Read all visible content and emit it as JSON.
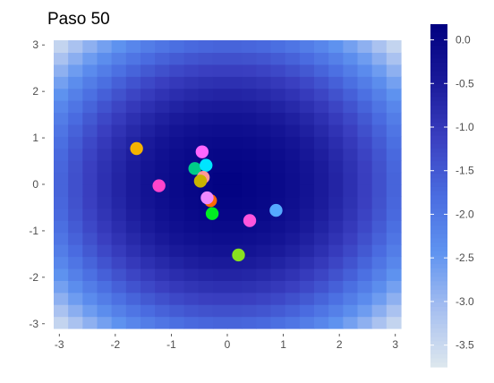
{
  "chart_data": {
    "type": "scatter",
    "title": "Paso 50",
    "xlabel": "",
    "ylabel": "",
    "xlim": [
      -3.1,
      3.1
    ],
    "ylim": [
      -3.1,
      3.1
    ],
    "x_ticks": [
      -3,
      -2,
      -1,
      0,
      1,
      2,
      3
    ],
    "y_ticks": [
      -3,
      -2,
      -1,
      0,
      1,
      2,
      3
    ],
    "x_tick_labels": [
      "-3",
      "-2",
      "-1",
      "0",
      "1",
      "2",
      "3"
    ],
    "y_tick_labels": [
      "-3",
      "-2",
      "-1",
      "0",
      "1",
      "2",
      "3"
    ],
    "grid": true,
    "legend_placement": "right",
    "background_surface": {
      "type": "heatmap",
      "description_value": "z = -(x^2 + y^2)/5 + 0.1 approx",
      "x_range": [
        -3.1,
        3.1
      ],
      "y_range": [
        -3.1,
        3.1
      ],
      "cells": 24
    },
    "colorbar": {
      "min": -3.75,
      "max": 0.18,
      "ticks": [
        0.0,
        -0.5,
        -1.0,
        -1.5,
        -2.0,
        -2.5,
        -3.0,
        -3.5
      ],
      "tick_labels": [
        "0.0",
        "-0.5",
        "-1.0",
        "-1.5",
        "-2.0",
        "-2.5",
        "-3.0",
        "-3.5"
      ],
      "colors": [
        "#dde8ee",
        "#a7bff0",
        "#5f93f0",
        "#4a6ce0",
        "#3a3fc0",
        "#1a1a9a",
        "#000080"
      ]
    },
    "points": [
      {
        "x": -1.62,
        "y": 0.77,
        "color": "#f5b300"
      },
      {
        "x": -0.45,
        "y": 0.7,
        "color": "#ff66ff"
      },
      {
        "x": -0.58,
        "y": 0.34,
        "color": "#00cc88"
      },
      {
        "x": -0.38,
        "y": 0.41,
        "color": "#00e5ff"
      },
      {
        "x": -0.43,
        "y": 0.15,
        "color": "#ff9999"
      },
      {
        "x": -0.48,
        "y": 0.07,
        "color": "#c8b400"
      },
      {
        "x": -1.22,
        "y": -0.03,
        "color": "#ff44cc"
      },
      {
        "x": -0.3,
        "y": -0.35,
        "color": "#ff6a00"
      },
      {
        "x": -0.36,
        "y": -0.29,
        "color": "#ee88ff"
      },
      {
        "x": -0.27,
        "y": -0.63,
        "color": "#00ee22"
      },
      {
        "x": 0.4,
        "y": -0.78,
        "color": "#ff55dd"
      },
      {
        "x": 0.87,
        "y": -0.56,
        "color": "#55aaff"
      },
      {
        "x": 0.2,
        "y": -1.52,
        "color": "#88e020"
      }
    ]
  }
}
